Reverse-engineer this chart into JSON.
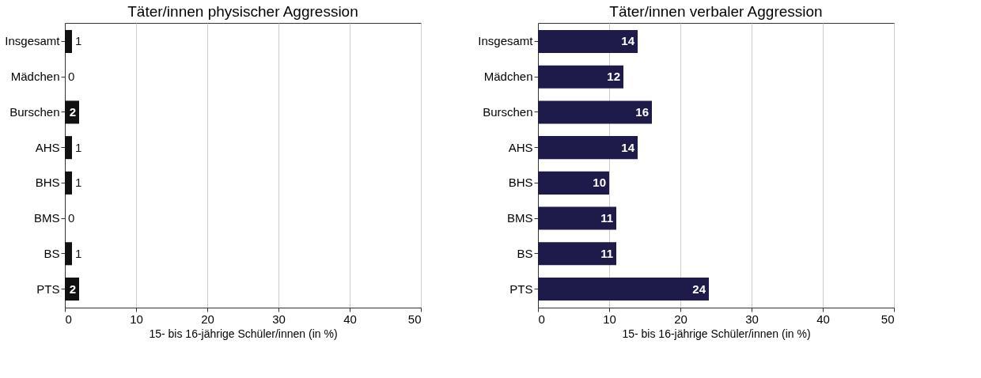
{
  "chart_data": [
    {
      "type": "bar",
      "orientation": "horizontal",
      "title": "Täter/innen physischer Aggression",
      "xlabel": "15- bis 16-jährige Schüler/innen (in %)",
      "categories": [
        "Insgesamt",
        "Mädchen",
        "Burschen",
        "AHS",
        "BHS",
        "BMS",
        "BS",
        "PTS"
      ],
      "values": [
        1,
        0,
        2,
        1,
        1,
        0,
        1,
        2
      ],
      "color": "#111111",
      "xlim": [
        0,
        50
      ],
      "xticks": [
        0,
        10,
        20,
        30,
        40,
        50
      ],
      "grid": "x",
      "data_labels": true
    },
    {
      "type": "bar",
      "orientation": "horizontal",
      "title": "Täter/innen verbaler Aggression",
      "xlabel": "15- bis 16-jährige Schüler/innen (in %)",
      "categories": [
        "Insgesamt",
        "Mädchen",
        "Burschen",
        "AHS",
        "BHS",
        "BMS",
        "BS",
        "PTS"
      ],
      "values": [
        14,
        12,
        16,
        14,
        10,
        11,
        11,
        24
      ],
      "color": "#1e1a4a",
      "xlim": [
        0,
        50
      ],
      "xticks": [
        0,
        10,
        20,
        30,
        40,
        50
      ],
      "grid": "x",
      "data_labels": true
    }
  ]
}
